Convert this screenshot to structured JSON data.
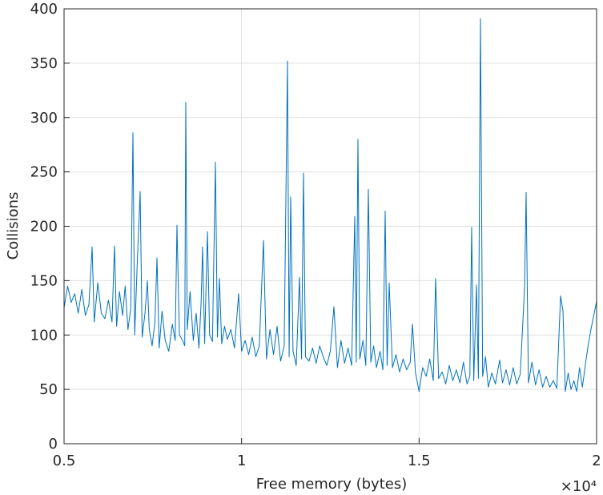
{
  "chart_data": {
    "type": "line",
    "x_label": "Free memory (bytes)",
    "y_label": "Collisions",
    "x_multiplier": "×10⁴",
    "xlim": [
      5000,
      20000
    ],
    "xticks": [
      {
        "value": 5000,
        "label": "0.5"
      },
      {
        "value": 10000,
        "label": "1"
      },
      {
        "value": 15000,
        "label": "1.5"
      },
      {
        "value": 20000,
        "label": "2"
      }
    ],
    "ylim": [
      0,
      400
    ],
    "yticks": [
      0,
      50,
      100,
      150,
      200,
      250,
      300,
      350,
      400
    ],
    "grid": true,
    "series": [
      {
        "color": "#0072bd",
        "x": [
          5000,
          5100,
          5200,
          5300,
          5400,
          5500,
          5600,
          5700,
          5790,
          5850,
          5950,
          6050,
          6150,
          6250,
          6350,
          6421,
          6480,
          6560,
          6650,
          6720,
          6800,
          6880,
          6940,
          6990,
          7060,
          7143,
          7200,
          7280,
          7346,
          7400,
          7480,
          7560,
          7617,
          7680,
          7760,
          7850,
          7950,
          8050,
          8130,
          8180,
          8250,
          8340,
          8400,
          8428,
          8470,
          8550,
          8640,
          8720,
          8800,
          8860,
          8902,
          8960,
          9038,
          9100,
          9180,
          9263,
          9320,
          9376,
          9440,
          9520,
          9600,
          9700,
          9800,
          9917,
          10000,
          10100,
          10200,
          10300,
          10400,
          10500,
          10616,
          10700,
          10800,
          10900,
          11000,
          11100,
          11200,
          11293,
          11340,
          11383,
          11450,
          11540,
          11631,
          11690,
          11744,
          11800,
          11900,
          12000,
          12100,
          12200,
          12300,
          12400,
          12500,
          12601,
          12700,
          12800,
          12900,
          13000,
          13100,
          13188,
          13230,
          13278,
          13330,
          13420,
          13500,
          13571,
          13640,
          13720,
          13800,
          13900,
          13980,
          14045,
          14100,
          14158,
          14250,
          14350,
          14450,
          14550,
          14650,
          14750,
          14812,
          14900,
          15000,
          15100,
          15200,
          15300,
          15400,
          15466,
          15550,
          15650,
          15750,
          15850,
          15950,
          16050,
          16150,
          16250,
          16350,
          16430,
          16481,
          16540,
          16617,
          16670,
          16729,
          16790,
          16870,
          16950,
          17050,
          17150,
          17271,
          17350,
          17450,
          17550,
          17650,
          17750,
          17850,
          17970,
          18015,
          18080,
          18180,
          18280,
          18380,
          18480,
          18580,
          18680,
          18780,
          18880,
          18985,
          19053,
          19120,
          19200,
          19280,
          19360,
          19440,
          19520,
          19600,
          19680,
          19760,
          19840,
          19920,
          20000
        ],
        "values": [
          125,
          145,
          130,
          138,
          120,
          142,
          118,
          128,
          181,
          112,
          148,
          120,
          115,
          132,
          112,
          182,
          108,
          140,
          118,
          145,
          105,
          125,
          286,
          100,
          165,
          232,
          98,
          120,
          150,
          105,
          90,
          112,
          171,
          88,
          122,
          95,
          85,
          110,
          95,
          201,
          100,
          95,
          90,
          314,
          105,
          140,
          95,
          120,
          88,
          130,
          181,
          92,
          195,
          100,
          94,
          259,
          98,
          152,
          92,
          108,
          96,
          105,
          88,
          138,
          85,
          95,
          82,
          98,
          80,
          90,
          187,
          78,
          105,
          82,
          108,
          76,
          90,
          352,
          80,
          227,
          85,
          72,
          153,
          78,
          249,
          80,
          76,
          88,
          74,
          90,
          80,
          72,
          85,
          126,
          70,
          95,
          74,
          88,
          72,
          209,
          75,
          280,
          78,
          95,
          72,
          234,
          75,
          90,
          70,
          85,
          68,
          214,
          72,
          148,
          70,
          82,
          66,
          78,
          68,
          75,
          110,
          65,
          48,
          70,
          62,
          78,
          58,
          152,
          60,
          66,
          55,
          72,
          58,
          68,
          56,
          75,
          55,
          62,
          199,
          58,
          146,
          60,
          391,
          62,
          80,
          52,
          65,
          55,
          77,
          56,
          68,
          54,
          70,
          55,
          64,
          143,
          231,
          56,
          75,
          54,
          68,
          52,
          62,
          52,
          58,
          51,
          136,
          122,
          48,
          65,
          50,
          58,
          48,
          70,
          52,
          72,
          90,
          105,
          118,
          131
        ]
      }
    ]
  }
}
